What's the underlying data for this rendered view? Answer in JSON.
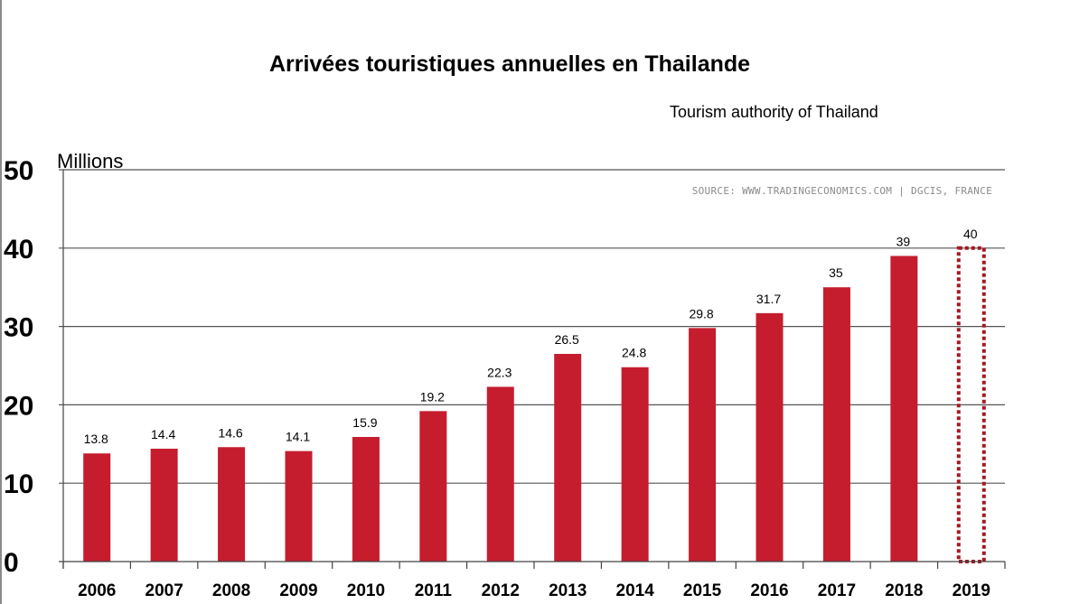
{
  "chart_data": {
    "type": "bar",
    "title": "Arrivées touristiques annuelles en Thailande",
    "subtitle": "Tourism authority of Thailand",
    "source": "SOURCE: WWW.TRADINGECONOMICS.COM | DGCIS, FRANCE",
    "ylabel": "Millions",
    "xlabel": "",
    "ylim": [
      0,
      50
    ],
    "yticks": [
      "0",
      "10",
      "20",
      "30",
      "40",
      "50"
    ],
    "grid": true,
    "categories": [
      "2006",
      "2007",
      "2008",
      "2009",
      "2010",
      "2011",
      "2012",
      "2013",
      "2014",
      "2015",
      "2016",
      "2017",
      "2018",
      "2019"
    ],
    "values": [
      13.8,
      14.4,
      14.6,
      14.1,
      15.9,
      19.2,
      22.3,
      26.5,
      24.8,
      29.8,
      31.7,
      35,
      39,
      40
    ],
    "value_labels": [
      "13.8",
      "14.4",
      "14.6",
      "14.1",
      "15.9",
      "19.2",
      "22.3",
      "26.5",
      "24.8",
      "29.8",
      "31.7",
      "35",
      "39",
      "40"
    ],
    "forecast_index": 13,
    "colors": {
      "bar": "#c51d2e",
      "forecast_outline": "#a31a22",
      "grid": "#555555",
      "axis": "#444444"
    }
  }
}
